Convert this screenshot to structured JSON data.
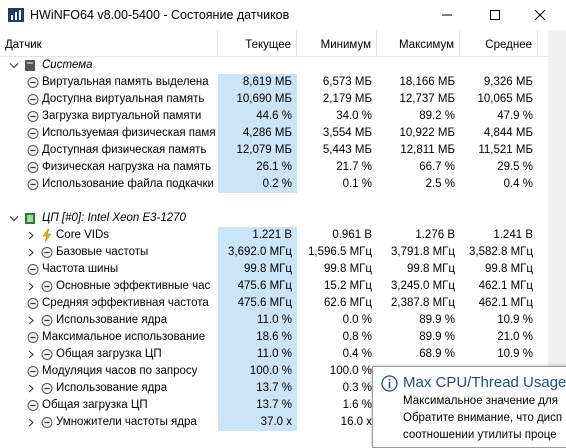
{
  "window": {
    "title": "HWiNFO64 v8.00-5400 - Состояние датчиков"
  },
  "table": {
    "columns": [
      "Датчик",
      "Текущее",
      "Минимум",
      "Максимум",
      "Среднее"
    ],
    "groups": [
      {
        "label": "Система",
        "rows": [
          {
            "name": "Виртуальная память выделена",
            "values": [
              "8,619 МБ",
              "6,573 МБ",
              "18,166 МБ",
              "9,326 МБ"
            ]
          },
          {
            "name": "Доступна виртуальная память",
            "values": [
              "10,690 МБ",
              "2,179 МБ",
              "12,737 МБ",
              "10,065 МБ"
            ]
          },
          {
            "name": "Загрузка виртуальной памяти",
            "values": [
              "44.6 %",
              "34.0 %",
              "89.2 %",
              "47.9 %"
            ]
          },
          {
            "name": "Используемая физическая память",
            "values": [
              "4,286 МБ",
              "3,554 МБ",
              "10,922 МБ",
              "4,844 МБ"
            ]
          },
          {
            "name": "Доступная физическая память",
            "values": [
              "12,079 МБ",
              "5,443 МБ",
              "12,811 МБ",
              "11,521 МБ"
            ]
          },
          {
            "name": "Физическая нагрузка на память",
            "values": [
              "26.1 %",
              "21.7 %",
              "66.7 %",
              "29.5 %"
            ]
          },
          {
            "name": "Использование файла подкачки",
            "values": [
              "0.2 %",
              "0.1 %",
              "2.5 %",
              "0.4 %"
            ]
          }
        ]
      },
      {
        "label": "ЦП [#0]: Intel Xeon E3-1270",
        "rows": [
          {
            "name": "Core VIDs",
            "values": [
              "1.221 В",
              "0.961 В",
              "1.276 В",
              "1.241 В"
            ]
          },
          {
            "name": "Базовые частоты",
            "values": [
              "3,692.0 МГц",
              "1,596.5 МГц",
              "3,791.8 МГц",
              "3,582.8 МГц"
            ]
          },
          {
            "name": "Частота шины",
            "values": [
              "99.8 МГц",
              "99.8 МГц",
              "99.8 МГц",
              "99.8 МГц"
            ]
          },
          {
            "name": "Основные эффективные час",
            "values": [
              "475.6 МГц",
              "15.2 МГц",
              "3,245.0 МГц",
              "462.1 МГц"
            ]
          },
          {
            "name": "Средняя эффективная частота",
            "values": [
              "475.6 МГц",
              "62.6 МГц",
              "2,387.8 МГц",
              "462.1 МГц"
            ]
          },
          {
            "name": "Использование ядра",
            "values": [
              "11.0 %",
              "0.0 %",
              "89.9 %",
              "10.9 %"
            ]
          },
          {
            "name": "Максимальное использование",
            "values": [
              "18.6 %",
              "0.8 %",
              "89.9 %",
              "21.0 %"
            ]
          },
          {
            "name": "Общая загрузка ЦП",
            "values": [
              "11.0 %",
              "0.4 %",
              "68.9 %",
              "10.9 %"
            ]
          },
          {
            "name": "Модуляция часов по запросу",
            "values": [
              "100.0 %",
              "100.0 %"
            ]
          },
          {
            "name": "Использование ядра",
            "values": [
              "13.7 %",
              "0.3 %"
            ]
          },
          {
            "name": "Общая загрузка ЦП",
            "values": [
              "13.7 %",
              "1.6 %"
            ]
          },
          {
            "name": "Умножители частоты ядра",
            "values": [
              "37.0 x",
              "16.0 x"
            ]
          }
        ]
      }
    ]
  },
  "tooltip": {
    "title": "Max CPU/Thread Usage",
    "lines": [
      "Максимальное значение для",
      "Обратите внимание, что дисп",
      "соотношении утилиты проце"
    ]
  }
}
